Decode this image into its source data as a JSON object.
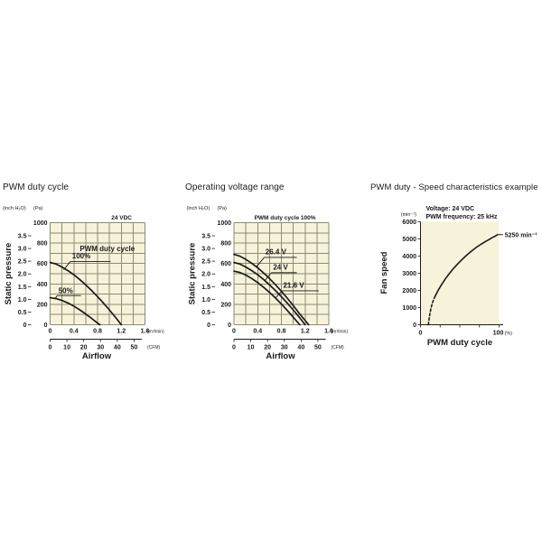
{
  "colors": {
    "background": "#ffffff",
    "plot_bg": "#f6f3da",
    "grid": "#8c8b75",
    "curve": "#1a1a1a",
    "text": "#1a1a1a"
  },
  "chart_data": [
    {
      "id": "pwm-duty-cycle",
      "type": "line",
      "title": "PWM duty cycle",
      "corner_label": "24 VDC",
      "y_unit_left": "(inch H₂O)",
      "y_unit_right": "(Pa)",
      "y_axis_label": "Static pressure",
      "x_axis_label": "Airflow",
      "x_unit": "(m³/min)",
      "x2_unit": "(CFM)",
      "xlim": [
        0,
        1.6
      ],
      "ylim": [
        0,
        1000
      ],
      "x_ticks": [
        0,
        0.4,
        0.8,
        1.2,
        1.6
      ],
      "x_tick_labels": [
        "0",
        "0.4",
        "0.8",
        "1.2",
        "1.6"
      ],
      "x2_tick_labels": [
        "0",
        "10",
        "20",
        "30",
        "40",
        "50"
      ],
      "pa_tick_labels": [
        "0",
        "200",
        "400",
        "600",
        "800",
        "1000"
      ],
      "inch_tick_labels": [
        "0",
        "0.5",
        "1.0",
        "1.5",
        "2.0",
        "2.5",
        "3.0",
        "3.5"
      ],
      "grid_x_step": 0.2,
      "grid_y_step": 100,
      "series": [
        {
          "name": "PWM duty cycle 100%",
          "points": [
            [
              0,
              610
            ],
            [
              0.1,
              595
            ],
            [
              0.2,
              565
            ],
            [
              0.3,
              530
            ],
            [
              0.4,
              490
            ],
            [
              0.5,
              443
            ],
            [
              0.6,
              390
            ],
            [
              0.7,
              335
            ],
            [
              0.8,
              275
            ],
            [
              0.9,
              212
            ],
            [
              1.0,
              145
            ],
            [
              1.1,
              75
            ],
            [
              1.2,
              0
            ]
          ]
        },
        {
          "name": "50%",
          "points": [
            [
              0,
              265
            ],
            [
              0.1,
              256
            ],
            [
              0.2,
              238
            ],
            [
              0.3,
              213
            ],
            [
              0.4,
              182
            ],
            [
              0.5,
              146
            ],
            [
              0.6,
              105
            ],
            [
              0.7,
              62
            ],
            [
              0.8,
              16
            ],
            [
              0.84,
              0
            ]
          ]
        }
      ],
      "annotations": [
        {
          "lines": [
            {
              "text": "PWM duty cycle",
              "x": 0.5,
              "y": 722
            },
            {
              "text": "100%",
              "x": 0.37,
              "y": 652
            }
          ],
          "underline": {
            "x1": 0.34,
            "x2": 1.02,
            "y": 620
          },
          "leader": {
            "x1": 0.34,
            "y1": 620,
            "x2": 0.23,
            "y2": 538
          }
        },
        {
          "lines": [
            {
              "text": "50%",
              "x": 0.14,
              "y": 310
            }
          ],
          "underline": {
            "x1": 0.12,
            "x2": 0.52,
            "y": 286
          },
          "leader": {
            "x1": 0.12,
            "y1": 286,
            "x2": 0.075,
            "y2": 250
          }
        }
      ]
    },
    {
      "id": "operating-voltage-range",
      "type": "line",
      "title": "Operating voltage range",
      "corner_label": "PWM duty cycle 100%",
      "y_unit_left": "(inch H₂O)",
      "y_unit_right": "(Pa)",
      "y_axis_label": "Static pressure",
      "x_axis_label": "Airflow",
      "x_unit": "(m³/min)",
      "x2_unit": "(CFM)",
      "xlim": [
        0,
        1.6
      ],
      "ylim": [
        0,
        1000
      ],
      "x_ticks": [
        0,
        0.4,
        0.8,
        1.2,
        1.6
      ],
      "x_tick_labels": [
        "0",
        "0.4",
        "0.8",
        "1.2",
        "1.6"
      ],
      "x2_tick_labels": [
        "0",
        "10",
        "20",
        "30",
        "40",
        "50"
      ],
      "pa_tick_labels": [
        "0",
        "200",
        "400",
        "600",
        "800",
        "1000"
      ],
      "inch_tick_labels": [
        "0",
        "0.5",
        "1.0",
        "1.5",
        "2.0",
        "2.5",
        "3.0",
        "3.5"
      ],
      "grid_x_step": 0.2,
      "grid_y_step": 100,
      "series": [
        {
          "name": "26.4 V",
          "points": [
            [
              0,
              690
            ],
            [
              0.1,
              672
            ],
            [
              0.2,
              640
            ],
            [
              0.3,
              602
            ],
            [
              0.4,
              558
            ],
            [
              0.5,
              508
            ],
            [
              0.6,
              452
            ],
            [
              0.7,
              392
            ],
            [
              0.8,
              328
            ],
            [
              0.9,
              260
            ],
            [
              1.0,
              188
            ],
            [
              1.1,
              113
            ],
            [
              1.2,
              42
            ],
            [
              1.26,
              0
            ]
          ]
        },
        {
          "name": "24 V",
          "points": [
            [
              0,
              610
            ],
            [
              0.1,
              595
            ],
            [
              0.2,
              565
            ],
            [
              0.3,
              530
            ],
            [
              0.4,
              490
            ],
            [
              0.5,
              443
            ],
            [
              0.6,
              390
            ],
            [
              0.7,
              335
            ],
            [
              0.8,
              275
            ],
            [
              0.9,
              212
            ],
            [
              1.0,
              145
            ],
            [
              1.1,
              75
            ],
            [
              1.2,
              0
            ]
          ]
        },
        {
          "name": "21.6 V",
          "points": [
            [
              0,
              525
            ],
            [
              0.1,
              512
            ],
            [
              0.2,
              487
            ],
            [
              0.3,
              453
            ],
            [
              0.4,
              413
            ],
            [
              0.5,
              367
            ],
            [
              0.6,
              317
            ],
            [
              0.7,
              262
            ],
            [
              0.8,
              203
            ],
            [
              0.9,
              140
            ],
            [
              1.0,
              74
            ],
            [
              1.11,
              0
            ]
          ]
        }
      ],
      "annotations": [
        {
          "lines": [
            {
              "text": "26.4 V",
              "x": 0.53,
              "y": 690
            }
          ],
          "underline": {
            "x1": 0.51,
            "x2": 1.06,
            "y": 660
          },
          "leader": {
            "x1": 0.51,
            "y1": 660,
            "x2": 0.38,
            "y2": 568
          }
        },
        {
          "lines": [
            {
              "text": "24 V",
              "x": 0.66,
              "y": 540
            }
          ],
          "underline": {
            "x1": 0.63,
            "x2": 1.06,
            "y": 510
          },
          "leader": {
            "x1": 0.63,
            "y1": 510,
            "x2": 0.52,
            "y2": 432
          }
        },
        {
          "lines": [
            {
              "text": "21.6 V",
              "x": 0.83,
              "y": 362
            }
          ],
          "underline": {
            "x1": 0.81,
            "x2": 1.43,
            "y": 332
          },
          "leader": {
            "x1": 0.81,
            "y1": 332,
            "x2": 0.7,
            "y2": 262
          }
        }
      ]
    },
    {
      "id": "pwm-duty-speed",
      "type": "line",
      "title": "PWM duty - Speed characteristics example",
      "conditions": [
        "Voltage: 24 VDC",
        "PWM frequency: 25 kHz"
      ],
      "y_unit": "(min⁻¹)",
      "y_axis_label": "Fan speed",
      "x_axis_label": "PWM duty cycle",
      "x_unit": "(%)",
      "xlim": [
        0,
        100
      ],
      "ylim": [
        0,
        6000
      ],
      "y_tick_labels": [
        "0",
        "1000",
        "2000",
        "3000",
        "4000",
        "5000",
        "6000"
      ],
      "x_tick_values": [
        0,
        25,
        50,
        75,
        100
      ],
      "x_tick_labels": [
        "0",
        "",
        "",
        "",
        "100"
      ],
      "end_label": "5250 min⁻¹",
      "end_point": [
        98,
        5250
      ],
      "grid": "off",
      "series": [
        {
          "name": "low-duty-dashed",
          "style": "dashed",
          "points": [
            [
              10,
              0
            ],
            [
              11,
              350
            ],
            [
              12,
              650
            ],
            [
              13.5,
              1000
            ],
            [
              15,
              1250
            ],
            [
              17,
              1500
            ],
            [
              19,
              1700
            ]
          ]
        },
        {
          "name": "speed-vs-duty",
          "style": "solid",
          "points": [
            [
              19,
              1700
            ],
            [
              23,
              2050
            ],
            [
              27,
              2350
            ],
            [
              32,
              2700
            ],
            [
              37,
              3000
            ],
            [
              42,
              3280
            ],
            [
              47,
              3530
            ],
            [
              52,
              3760
            ],
            [
              57,
              3980
            ],
            [
              62,
              4180
            ],
            [
              67,
              4370
            ],
            [
              72,
              4540
            ],
            [
              77,
              4690
            ],
            [
              82,
              4830
            ],
            [
              87,
              4960
            ],
            [
              91,
              5070
            ],
            [
              95,
              5160
            ],
            [
              98,
              5250
            ]
          ]
        }
      ]
    }
  ]
}
